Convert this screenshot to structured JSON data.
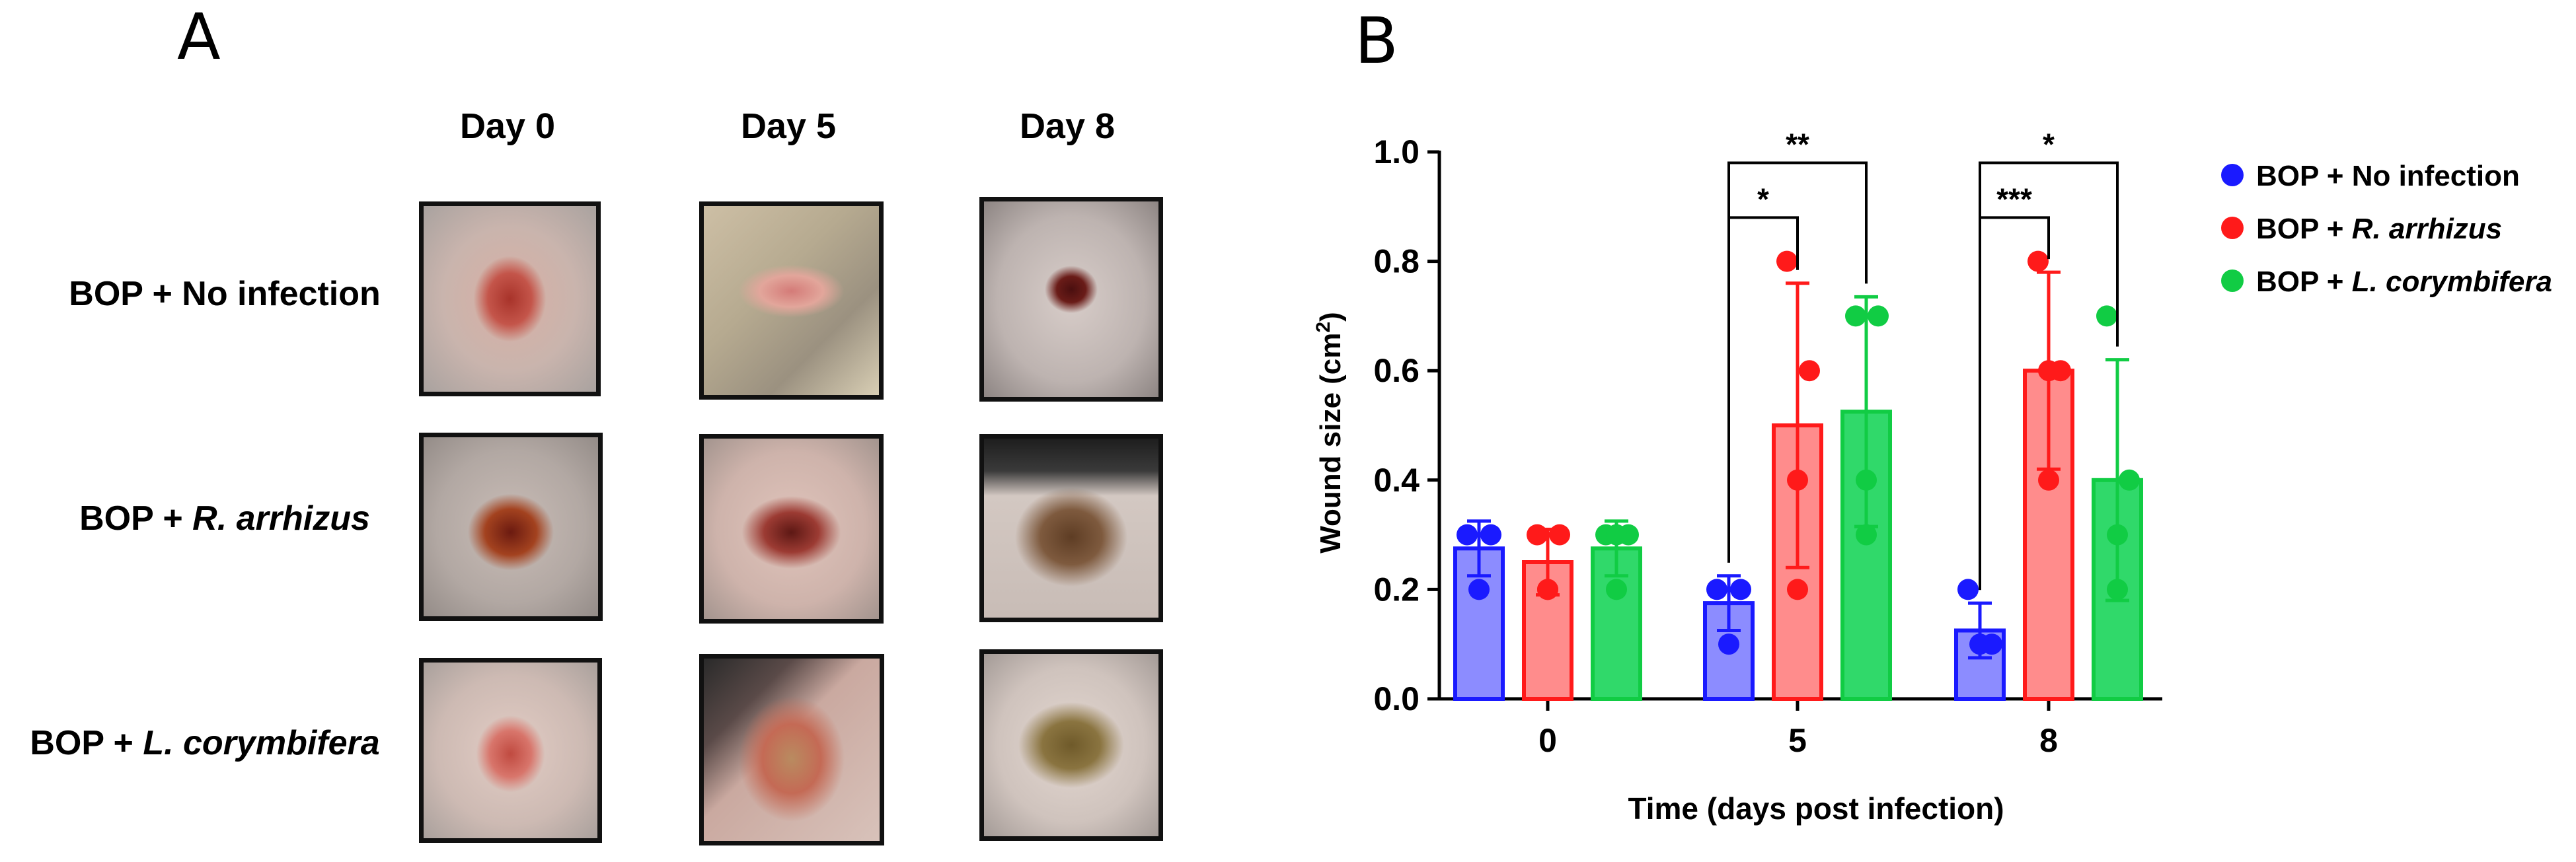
{
  "panel_a": {
    "letter": "A",
    "columns": [
      "Day 0",
      "Day 5",
      "Day 8"
    ],
    "rows": [
      {
        "prefix": "BOP + ",
        "name": "No infection",
        "italic": false
      },
      {
        "prefix": "BOP + ",
        "name": "R. arrhizus",
        "italic": true
      },
      {
        "prefix": "BOP + ",
        "name": "L. corymbifera",
        "italic": true
      }
    ]
  },
  "chart_data": {
    "type": "bar",
    "panel_letter": "B",
    "categories": [
      "0",
      "5",
      "8"
    ],
    "xlabel": "Time (days post infection)",
    "ylabel": "Wound size (cm²)",
    "ylim": [
      0,
      1.0
    ],
    "yticks": [
      "0.0",
      "0.2",
      "0.4",
      "0.6",
      "0.8",
      "1.0"
    ],
    "series": [
      {
        "name": "BOP + No infection",
        "prefix": "BOP + ",
        "label": "No infection",
        "italic": false,
        "color": "#1a1aff",
        "fill": "#8c8cff",
        "values": [
          0.275,
          0.175,
          0.125
        ],
        "sd": [
          0.05,
          0.05,
          0.05
        ],
        "points": [
          [
            0.3,
            0.3,
            0.2
          ],
          [
            0.2,
            0.2,
            0.1
          ],
          [
            0.2,
            0.1,
            0.1
          ]
        ]
      },
      {
        "name": "BOP + R. arrhizus",
        "prefix": "BOP + ",
        "label": "R. arrhizus",
        "italic": true,
        "color": "#ff1a1a",
        "fill": "#ff8c8c",
        "values": [
          0.25,
          0.5,
          0.6
        ],
        "sd": [
          0.06,
          0.26,
          0.18
        ],
        "points": [
          [
            0.3,
            0.3,
            0.2,
            0.2
          ],
          [
            0.8,
            0.6,
            0.4,
            0.2
          ],
          [
            0.8,
            0.6,
            0.4,
            0.6
          ]
        ]
      },
      {
        "name": "BOP + L. corymbifera",
        "prefix": "BOP + ",
        "label": "L. corymbifera",
        "italic": true,
        "color": "#11cc44",
        "fill": "#30d96a",
        "values": [
          0.275,
          0.525,
          0.4
        ],
        "sd": [
          0.05,
          0.21,
          0.22
        ],
        "points": [
          [
            0.3,
            0.3,
            0.2,
            0.3
          ],
          [
            0.7,
            0.7,
            0.4,
            0.3
          ],
          [
            0.7,
            0.4,
            0.3,
            0.2
          ]
        ]
      }
    ],
    "significance": [
      {
        "group": "5",
        "from": 0,
        "to": 1,
        "label": "*",
        "level": 0.88
      },
      {
        "group": "5",
        "from": 0,
        "to": 2,
        "label": "**",
        "level": 0.98
      },
      {
        "group": "8",
        "from": 0,
        "to": 1,
        "label": "***",
        "level": 0.88
      },
      {
        "group": "8",
        "from": 0,
        "to": 2,
        "label": "*",
        "level": 0.98
      }
    ]
  }
}
